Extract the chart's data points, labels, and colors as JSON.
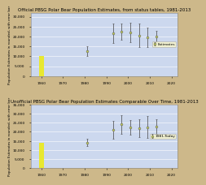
{
  "title1": "Official PBSG Polar Bear Population Estimates, from status tables, 1981-2013",
  "title2": "Unofficial PBSG Polar Bear Population Estimates Comparable Over Time, 1981-2013",
  "ylabel": "Population Estimates in rounded, with error bar",
  "plot1": {
    "years": [
      1981,
      1993,
      1997,
      2001,
      2005,
      2009,
      2013
    ],
    "estimates": [
      12500,
      21500,
      22500,
      22000,
      20500,
      19500,
      20000
    ],
    "err_low": [
      2500,
      5000,
      4000,
      5000,
      6000,
      5000,
      3000
    ],
    "err_high": [
      2500,
      5000,
      4000,
      5000,
      6000,
      5000,
      3000
    ],
    "ylim": [
      0,
      32000
    ],
    "yticks": [
      0,
      5000,
      10000,
      15000,
      20000,
      25000,
      30000
    ],
    "legend_label": "Estimates",
    "bar1960_val": 10000
  },
  "plot2": {
    "years": [
      1981,
      1993,
      1997,
      2001,
      2005,
      2009,
      2013
    ],
    "estimates": [
      14000,
      21000,
      24000,
      22500,
      22000,
      22500,
      23000
    ],
    "err_low": [
      2000,
      5000,
      5000,
      4000,
      5000,
      6000,
      4000
    ],
    "err_high": [
      2000,
      5000,
      5000,
      4000,
      5000,
      6000,
      4000
    ],
    "ylim": [
      0,
      35000
    ],
    "yticks": [
      0,
      5000,
      10000,
      15000,
      20000,
      25000,
      30000,
      35000
    ],
    "legend_label": "1981-Today",
    "bar1960_val": 14000
  },
  "xticks": [
    1960,
    1970,
    1980,
    1990,
    2000,
    2010,
    2020
  ],
  "xlim": [
    1955,
    2023
  ],
  "line_color": "#c8d44e",
  "marker_facecolor": "#c8d44e",
  "marker_edgecolor": "#666666",
  "bar_color": "#e8e830",
  "bg_outer": "#cdb88a",
  "bg_plot": "#ccd8ee",
  "grid_color": "#ffffff",
  "ecolor": "#444444",
  "title_fontsize": 4.0,
  "tick_fontsize": 3.2,
  "ylabel_fontsize": 3.0,
  "legend_fontsize": 3.2,
  "markersize": 2.0,
  "linewidth": 0.8,
  "elinewidth": 0.5,
  "capsize": 1.0,
  "bar_width": 2.5
}
